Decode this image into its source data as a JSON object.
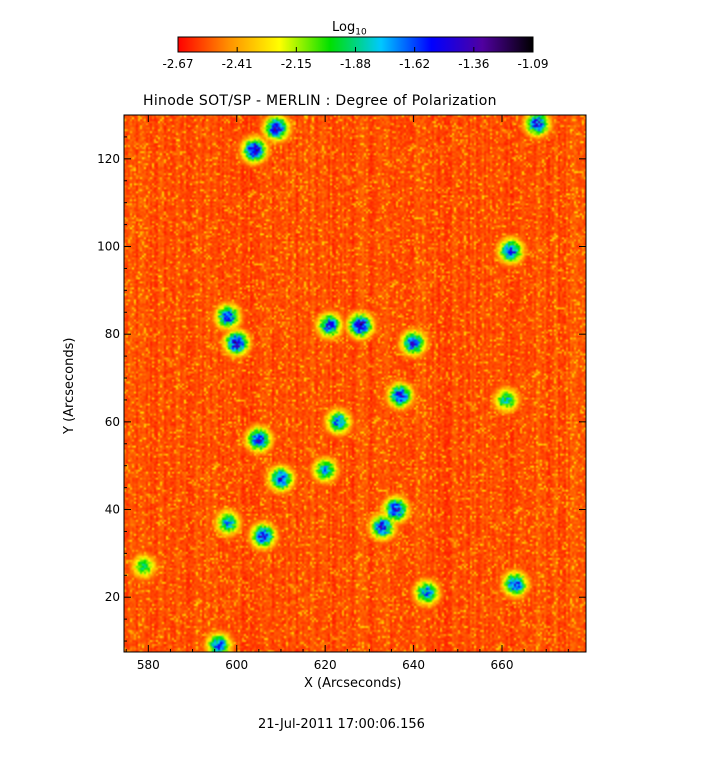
{
  "colorbar": {
    "title": "Log",
    "title_sub": "10",
    "ticks": [
      "-2.67",
      "-2.41",
      "-2.15",
      "-1.88",
      "-1.62",
      "-1.36",
      "-1.09"
    ],
    "colors": [
      "#ff0000",
      "#ff9000",
      "#ffff00",
      "#00e000",
      "#00c8ff",
      "#0000ff",
      "#5000a0",
      "#000000"
    ]
  },
  "plot": {
    "title": "Hinode SOT/SP - MERLIN : Degree of Polarization",
    "xlabel": "X (Arcseconds)",
    "ylabel": "Y (Arcseconds)"
  },
  "timestamp": "21-Jul-2011 17:00:06.156",
  "chart_data": {
    "type": "heatmap",
    "title": "Hinode SOT/SP - MERLIN : Degree of Polarization",
    "xlabel": "X (Arcseconds)",
    "ylabel": "Y (Arcseconds)",
    "xlim": [
      574.5,
      679
    ],
    "ylim": [
      7.5,
      130
    ],
    "xticks": [
      580,
      600,
      620,
      640,
      660
    ],
    "yticks": [
      20,
      40,
      60,
      80,
      100,
      120
    ],
    "value_scale": "log10",
    "vmin": -2.67,
    "vmax": -1.09,
    "background_level": -2.6,
    "colormap": [
      "#ff0000",
      "#ff9000",
      "#ffff00",
      "#00e000",
      "#00c8ff",
      "#0000ff",
      "#5000a0",
      "#000000"
    ],
    "high_polarization_regions": [
      {
        "x": 609,
        "y": 127,
        "peak": -1.36
      },
      {
        "x": 604,
        "y": 122,
        "peak": -1.36
      },
      {
        "x": 668,
        "y": 128,
        "peak": -1.45
      },
      {
        "x": 600,
        "y": 78,
        "peak": -1.36
      },
      {
        "x": 598,
        "y": 84,
        "peak": -1.5
      },
      {
        "x": 628,
        "y": 82,
        "peak": -1.3
      },
      {
        "x": 621,
        "y": 82,
        "peak": -1.5
      },
      {
        "x": 640,
        "y": 78,
        "peak": -1.45
      },
      {
        "x": 637,
        "y": 66,
        "peak": -1.45
      },
      {
        "x": 605,
        "y": 56,
        "peak": -1.45
      },
      {
        "x": 610,
        "y": 47,
        "peak": -1.45
      },
      {
        "x": 623,
        "y": 60,
        "peak": -1.6
      },
      {
        "x": 620,
        "y": 49,
        "peak": -1.7
      },
      {
        "x": 636,
        "y": 40,
        "peak": -1.4
      },
      {
        "x": 633,
        "y": 36,
        "peak": -1.45
      },
      {
        "x": 606,
        "y": 34,
        "peak": -1.45
      },
      {
        "x": 598,
        "y": 37,
        "peak": -1.7
      },
      {
        "x": 662,
        "y": 99,
        "peak": -1.5
      },
      {
        "x": 663,
        "y": 23,
        "peak": -1.5
      },
      {
        "x": 643,
        "y": 21,
        "peak": -1.6
      },
      {
        "x": 596,
        "y": 9,
        "peak": -1.55
      },
      {
        "x": 579,
        "y": 27,
        "peak": -1.9
      },
      {
        "x": 661,
        "y": 65,
        "peak": -1.8
      }
    ]
  }
}
